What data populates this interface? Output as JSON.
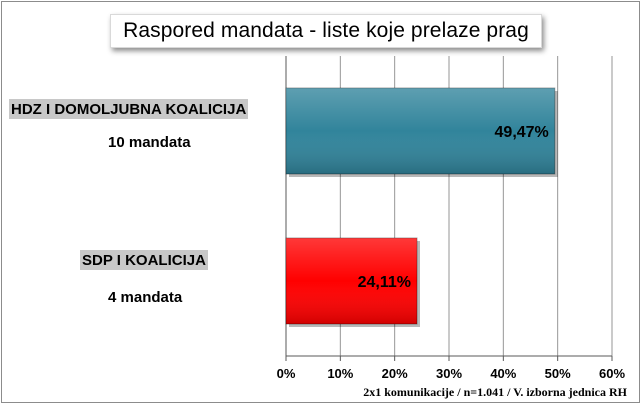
{
  "chart_data": {
    "type": "bar",
    "orientation": "horizontal",
    "title": "Raspored mandata - liste koje prelaze prag",
    "categories": [
      "HDZ I DOMOLJUBNA KOALICIJA",
      "SDP I KOALICIJA"
    ],
    "category_sublabels": [
      "10 mandata",
      "4 mandata"
    ],
    "values": [
      49.47,
      24.11
    ],
    "value_labels": [
      "49,47%",
      "24,11%"
    ],
    "bar_colors": [
      "#31849b",
      "#ff0000"
    ],
    "xlim": [
      0,
      60
    ],
    "x_ticks": [
      "0%",
      "10%",
      "20%",
      "30%",
      "40%",
      "50%",
      "60%"
    ],
    "grid": true,
    "legend": "none",
    "source_note": "2x1 komunikacije / n=1.041 / V. izborna jednica RH"
  }
}
